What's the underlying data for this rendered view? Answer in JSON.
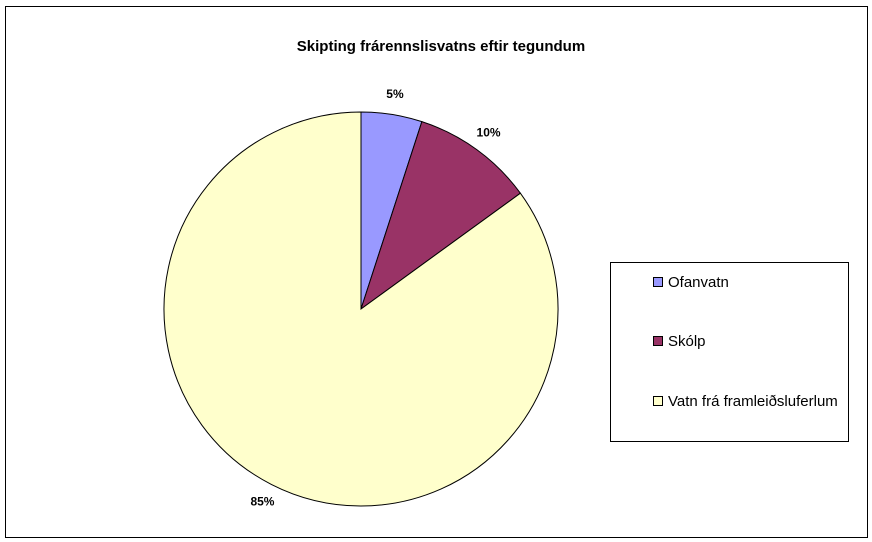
{
  "chart_data": {
    "type": "pie",
    "title": "Skipting frárennslisvatns eftir tegundum",
    "categories": [
      "Ofanvatn",
      "Skólp",
      "Vatn frá framleiðsluferlum"
    ],
    "values": [
      5,
      10,
      85
    ],
    "value_labels": [
      "5%",
      "10%",
      "85%"
    ],
    "colors": [
      "#9999ff",
      "#993366",
      "#ffffcc"
    ],
    "legend": "right"
  }
}
